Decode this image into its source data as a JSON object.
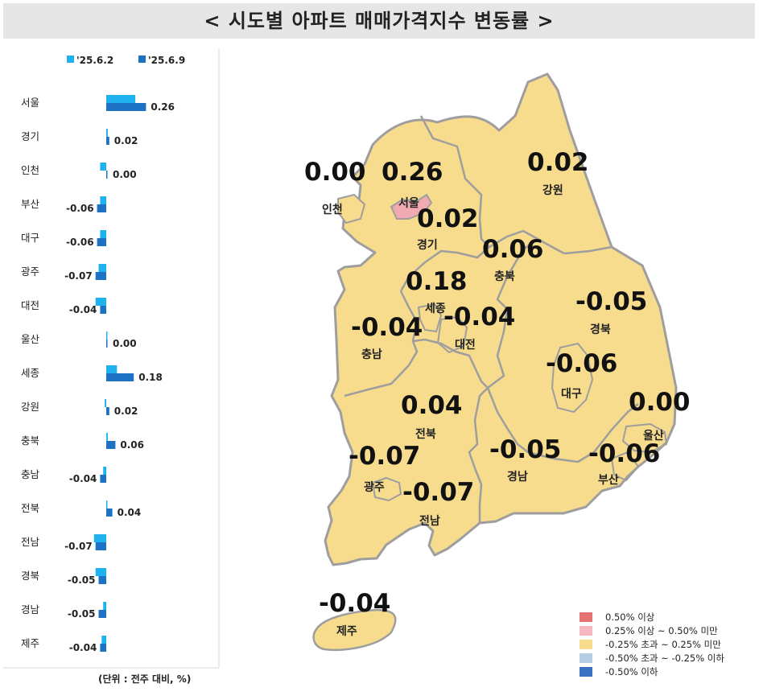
{
  "title": "< 시도별 아파트 매매가격지수 변동률 >",
  "colors": {
    "prev_week": "#1fb2ee",
    "this_week": "#1d72c4",
    "map_fill": "#f7dc8e",
    "map_highlight": "#f1a9b2",
    "map_stroke": "#9e9e9e"
  },
  "chart_data": [
    {
      "type": "bar",
      "orientation": "horizontal",
      "categories": [
        "서울",
        "경기",
        "인천",
        "부산",
        "대구",
        "광주",
        "대전",
        "울산",
        "세종",
        "강원",
        "충북",
        "충남",
        "전북",
        "전남",
        "경북",
        "경남",
        "제주"
      ],
      "series": [
        {
          "name": "'25.6.2",
          "values": [
            0.19,
            0.01,
            -0.04,
            -0.04,
            -0.04,
            -0.05,
            -0.07,
            0.0,
            0.07,
            -0.01,
            0.01,
            -0.02,
            0.0,
            -0.08,
            -0.07,
            -0.02,
            -0.03
          ]
        },
        {
          "name": "'25.6.9",
          "values": [
            0.26,
            0.02,
            0.0,
            -0.06,
            -0.06,
            -0.07,
            -0.04,
            0.0,
            0.18,
            0.02,
            0.06,
            -0.04,
            0.04,
            -0.07,
            -0.05,
            -0.05,
            -0.04
          ]
        }
      ],
      "data_labels": [
        "0.26",
        "0.02",
        "0.00",
        "-0.06",
        "-0.06",
        "-0.07",
        "-0.04",
        "0.00",
        "0.18",
        "0.02",
        "0.06",
        "-0.04",
        "0.04",
        "-0.07",
        "-0.05",
        "-0.05",
        "-0.04"
      ],
      "legend_position": "top",
      "unit_note": "(단위 : 전주 대비, %)"
    },
    {
      "type": "choropleth-map",
      "regions": [
        {
          "name": "서울",
          "value": "0.26",
          "category": "0.25% 이상 ~ 0.50% 미만"
        },
        {
          "name": "인천",
          "value": "0.00",
          "category": "-0.25% 초과 ~ 0.25% 미만"
        },
        {
          "name": "경기",
          "value": "0.02",
          "category": "-0.25% 초과 ~ 0.25% 미만"
        },
        {
          "name": "강원",
          "value": "0.02",
          "category": "-0.25% 초과 ~ 0.25% 미만"
        },
        {
          "name": "충북",
          "value": "0.06",
          "category": "-0.25% 초과 ~ 0.25% 미만"
        },
        {
          "name": "세종",
          "value": "0.18",
          "category": "-0.25% 초과 ~ 0.25% 미만"
        },
        {
          "name": "충남",
          "value": "-0.04",
          "category": "-0.25% 초과 ~ 0.25% 미만"
        },
        {
          "name": "대전",
          "value": "-0.04",
          "category": "-0.25% 초과 ~ 0.25% 미만"
        },
        {
          "name": "경북",
          "value": "-0.05",
          "category": "-0.25% 초과 ~ 0.25% 미만"
        },
        {
          "name": "대구",
          "value": "-0.06",
          "category": "-0.25% 초과 ~ 0.25% 미만"
        },
        {
          "name": "전북",
          "value": "0.04",
          "category": "-0.25% 초과 ~ 0.25% 미만"
        },
        {
          "name": "울산",
          "value": "0.00",
          "category": "-0.25% 초과 ~ 0.25% 미만"
        },
        {
          "name": "광주",
          "value": "-0.07",
          "category": "-0.25% 초과 ~ 0.25% 미만"
        },
        {
          "name": "전남",
          "value": "-0.07",
          "category": "-0.25% 초과 ~ 0.25% 미만"
        },
        {
          "name": "경남",
          "value": "-0.05",
          "category": "-0.25% 초과 ~ 0.25% 미만"
        },
        {
          "name": "부산",
          "value": "-0.06",
          "category": "-0.25% 초과 ~ 0.25% 미만"
        },
        {
          "name": "제주",
          "value": "-0.04",
          "category": "-0.25% 초과 ~ 0.25% 미만"
        }
      ],
      "legend": [
        {
          "label": "0.50% 이상",
          "color": "#e57373"
        },
        {
          "label": "0.25% 이상 ~ 0.50% 미만",
          "color": "#f4b6bf"
        },
        {
          "label": "-0.25% 초과 ~ 0.25% 미만",
          "color": "#f7dc8e"
        },
        {
          "label": "-0.50% 초과 ~ -0.25% 이하",
          "color": "#b6cde6"
        },
        {
          "label": "-0.50% 이하",
          "color": "#3a6fc2"
        }
      ],
      "legend_position": "bottom-right"
    }
  ]
}
